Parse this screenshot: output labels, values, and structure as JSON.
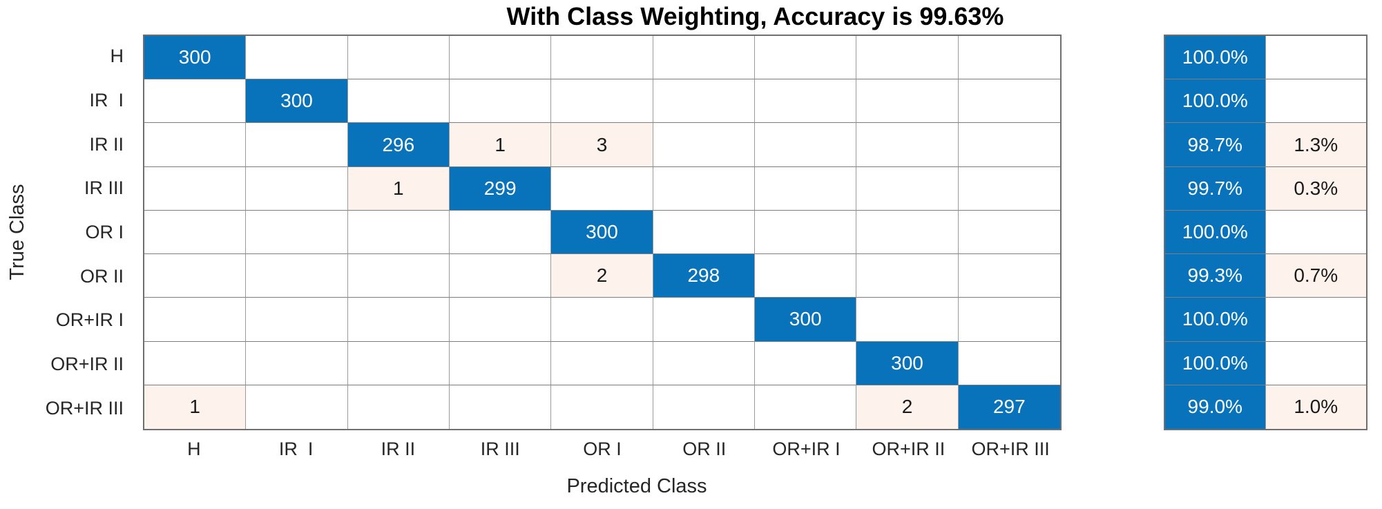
{
  "title": "With Class Weighting, Accuracy is 99.63%",
  "xlabel": "Predicted Class",
  "ylabel": "True Class",
  "colors": {
    "diagonal_blue": "#0873ba",
    "offdiagonal_tint": "#fdf2ec",
    "grid_line_light": "#9a9a9a",
    "grid_line_mid": "#7d7d7d",
    "grid_border_dark": "#6f6f6f",
    "text_on_blue": "#ffffff",
    "text_default": "#1a1a1a"
  },
  "chart_data": {
    "type": "heatmap",
    "subtype": "confusion-matrix",
    "title": "With Class Weighting, Accuracy is 99.63%",
    "xlabel": "Predicted Class",
    "ylabel": "True Class",
    "classes": [
      "H",
      "IR  I",
      "IR II",
      "IR III",
      "OR I",
      "OR II",
      "OR+IR I",
      "OR+IR II",
      "OR+IR III"
    ],
    "matrix": [
      [
        300,
        0,
        0,
        0,
        0,
        0,
        0,
        0,
        0
      ],
      [
        0,
        300,
        0,
        0,
        0,
        0,
        0,
        0,
        0
      ],
      [
        0,
        0,
        296,
        1,
        3,
        0,
        0,
        0,
        0
      ],
      [
        0,
        0,
        1,
        299,
        0,
        0,
        0,
        0,
        0
      ],
      [
        0,
        0,
        0,
        0,
        300,
        0,
        0,
        0,
        0
      ],
      [
        0,
        0,
        0,
        0,
        2,
        298,
        0,
        0,
        0
      ],
      [
        0,
        0,
        0,
        0,
        0,
        0,
        300,
        0,
        0
      ],
      [
        0,
        0,
        0,
        0,
        0,
        0,
        0,
        300,
        0
      ],
      [
        1,
        0,
        0,
        0,
        0,
        0,
        0,
        2,
        297
      ]
    ],
    "row_summary": [
      {
        "correct": "100.0%",
        "incorrect": ""
      },
      {
        "correct": "100.0%",
        "incorrect": ""
      },
      {
        "correct": "98.7%",
        "incorrect": "1.3%"
      },
      {
        "correct": "99.7%",
        "incorrect": "0.3%"
      },
      {
        "correct": "100.0%",
        "incorrect": ""
      },
      {
        "correct": "99.3%",
        "incorrect": "0.7%"
      },
      {
        "correct": "100.0%",
        "incorrect": ""
      },
      {
        "correct": "100.0%",
        "incorrect": ""
      },
      {
        "correct": "99.0%",
        "incorrect": "1.0%"
      }
    ],
    "legend_position": "none",
    "grid": true
  }
}
